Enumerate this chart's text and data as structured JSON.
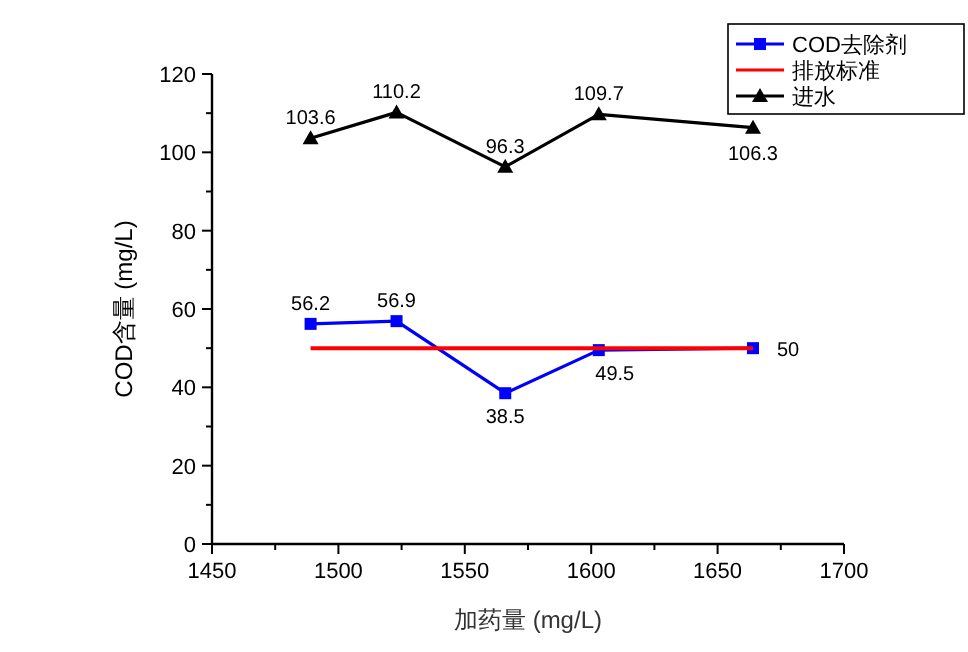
{
  "chart_data": {
    "type": "line",
    "xlabel": "加药量 (mg/L)",
    "ylabel": "COD含量 (mg/L)",
    "xlim": [
      1450,
      1700
    ],
    "xticks": [
      1450,
      {
        "value": 1475,
        "label": null
      },
      1500,
      {
        "value": 1525,
        "label": null
      },
      1550,
      {
        "value": 1575,
        "label": null
      },
      1600,
      {
        "value": 1625,
        "label": null
      },
      1650,
      {
        "value": 1675,
        "label": null
      },
      1700
    ],
    "ylim": [
      0,
      120
    ],
    "yticks": [
      0,
      {
        "value": 10,
        "label": null
      },
      20,
      {
        "value": 30,
        "label": null
      },
      40,
      {
        "value": 50,
        "label": null
      },
      60,
      {
        "value": 70,
        "label": null
      },
      80,
      {
        "value": 90,
        "label": null
      },
      100,
      {
        "value": 110,
        "label": null
      },
      120
    ],
    "grid": false,
    "legend": "top right",
    "series": [
      {
        "name": "COD去除剂",
        "color": "#0000ff",
        "marker": "square",
        "x": [
          1489,
          1523,
          1566,
          1603,
          1664
        ],
        "values": [
          56.2,
          56.9,
          38.5,
          49.5,
          50
        ],
        "value_labels": [
          "56.2",
          "56.9",
          "38.5",
          "49.5",
          "50"
        ]
      },
      {
        "name": "排放标准",
        "color": "#ff0000",
        "marker": "none",
        "x": [
          1489,
          1664
        ],
        "values": [
          50,
          50
        ]
      },
      {
        "name": "进水",
        "color": "#000000",
        "marker": "triangle",
        "x": [
          1489,
          1523,
          1566,
          1603,
          1664
        ],
        "values": [
          103.6,
          110.2,
          96.3,
          109.7,
          106.3
        ],
        "value_labels": [
          "103.6",
          "110.2",
          "96.3",
          "109.7",
          "106.3"
        ]
      }
    ]
  }
}
